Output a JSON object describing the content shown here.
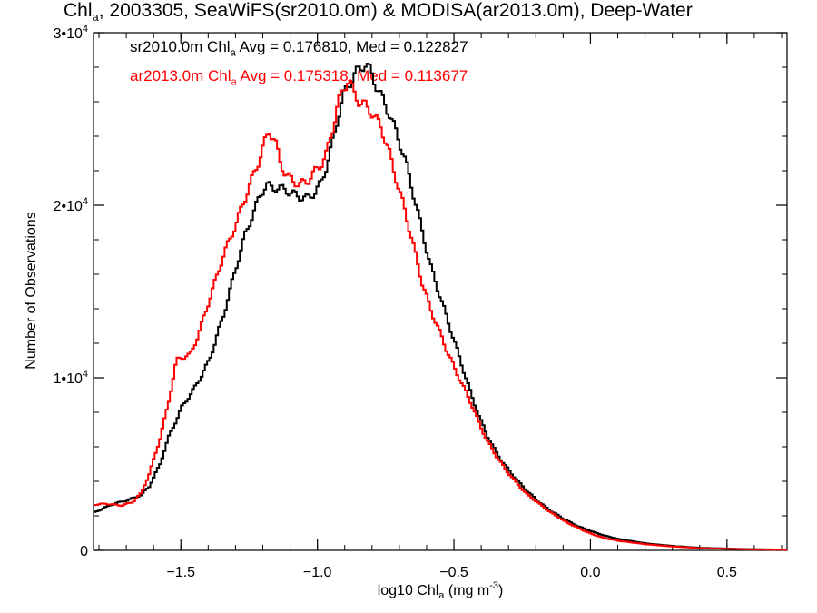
{
  "chart_data": {
    "type": "line",
    "title": {
      "prefix": "Chl",
      "sub": "a",
      "rest": ", 2003305, SeaWiFS(sr2010.0m) & MODISA(ar2013.0m), Deep-Water"
    },
    "xlabel": {
      "prefix": "log10 Chl",
      "sub": "a",
      "rest": " (mg m",
      "sup": "-3",
      "end": ")"
    },
    "ylabel": "Number of Observations",
    "xlim": [
      -1.82,
      0.72
    ],
    "ylim": [
      0,
      30000
    ],
    "x_ticks": [
      {
        "value": -1.5,
        "label": "-1.5"
      },
      {
        "value": -1.0,
        "label": "-1.0"
      },
      {
        "value": -0.5,
        "label": "-0.5"
      },
      {
        "value": 0.0,
        "label": "0.0"
      },
      {
        "value": 0.5,
        "label": "0.5"
      }
    ],
    "y_ticks": [
      {
        "value": 0,
        "mantissa": "0",
        "exp": ""
      },
      {
        "value": 10000,
        "mantissa": "1•10",
        "exp": "4"
      },
      {
        "value": 20000,
        "mantissa": "2•10",
        "exp": "4"
      },
      {
        "value": 30000,
        "mantissa": "3•10",
        "exp": "4"
      }
    ],
    "grid": false,
    "legend_placement": "top-left",
    "series": [
      {
        "name": "sr2010.0m",
        "legend": {
          "prefix": "sr2010.0m Chl",
          "sub": "a",
          "rest": " Avg = 0.176810, Med = 0.122827"
        },
        "color": "#000000",
        "points": [
          [
            -1.82,
            2200
          ],
          [
            -1.75,
            2700
          ],
          [
            -1.7,
            2900
          ],
          [
            -1.65,
            3200
          ],
          [
            -1.62,
            3700
          ],
          [
            -1.58,
            5000
          ],
          [
            -1.55,
            6500
          ],
          [
            -1.5,
            8300
          ],
          [
            -1.45,
            9500
          ],
          [
            -1.4,
            11000
          ],
          [
            -1.35,
            13500
          ],
          [
            -1.3,
            16500
          ],
          [
            -1.27,
            18200
          ],
          [
            -1.24,
            19500
          ],
          [
            -1.21,
            20700
          ],
          [
            -1.19,
            21200
          ],
          [
            -1.17,
            21000
          ],
          [
            -1.15,
            21000
          ],
          [
            -1.12,
            20900
          ],
          [
            -1.1,
            20700
          ],
          [
            -1.07,
            20500
          ],
          [
            -1.04,
            20400
          ],
          [
            -1.01,
            20800
          ],
          [
            -0.99,
            21300
          ],
          [
            -0.97,
            22300
          ],
          [
            -0.95,
            23500
          ],
          [
            -0.93,
            25000
          ],
          [
            -0.91,
            26300
          ],
          [
            -0.89,
            27000
          ],
          [
            -0.87,
            27500
          ],
          [
            -0.85,
            27900
          ],
          [
            -0.83,
            28200
          ],
          [
            -0.81,
            27800
          ],
          [
            -0.79,
            27000
          ],
          [
            -0.77,
            26300
          ],
          [
            -0.74,
            25300
          ],
          [
            -0.71,
            24000
          ],
          [
            -0.68,
            22500
          ],
          [
            -0.65,
            20500
          ],
          [
            -0.62,
            18500
          ],
          [
            -0.59,
            16500
          ],
          [
            -0.56,
            15000
          ],
          [
            -0.53,
            13500
          ],
          [
            -0.5,
            12000
          ],
          [
            -0.47,
            10500
          ],
          [
            -0.44,
            9000
          ],
          [
            -0.41,
            7700
          ],
          [
            -0.38,
            6600
          ],
          [
            -0.35,
            5700
          ],
          [
            -0.32,
            5000
          ],
          [
            -0.28,
            4200
          ],
          [
            -0.24,
            3500
          ],
          [
            -0.2,
            2900
          ],
          [
            -0.15,
            2300
          ],
          [
            -0.1,
            1800
          ],
          [
            -0.05,
            1400
          ],
          [
            0.0,
            1100
          ],
          [
            0.05,
            850
          ],
          [
            0.1,
            650
          ],
          [
            0.2,
            400
          ],
          [
            0.3,
            250
          ],
          [
            0.4,
            150
          ],
          [
            0.55,
            80
          ],
          [
            0.72,
            40
          ]
        ]
      },
      {
        "name": "ar2013.0m",
        "legend": {
          "prefix": "ar2013.0m Chl",
          "sub": "a",
          "rest": " Avg = 0.175318, Med = 0.113677"
        },
        "color": "#ff0000",
        "points": [
          [
            -1.82,
            2650
          ],
          [
            -1.78,
            2700
          ],
          [
            -1.72,
            2600
          ],
          [
            -1.68,
            2800
          ],
          [
            -1.65,
            3300
          ],
          [
            -1.62,
            4400
          ],
          [
            -1.58,
            6500
          ],
          [
            -1.55,
            8500
          ],
          [
            -1.52,
            11000
          ],
          [
            -1.5,
            11200
          ],
          [
            -1.47,
            11300
          ],
          [
            -1.44,
            12500
          ],
          [
            -1.4,
            14500
          ],
          [
            -1.35,
            17000
          ],
          [
            -1.3,
            19000
          ],
          [
            -1.26,
            20800
          ],
          [
            -1.22,
            22500
          ],
          [
            -1.2,
            23500
          ],
          [
            -1.18,
            24300
          ],
          [
            -1.16,
            23800
          ],
          [
            -1.14,
            22500
          ],
          [
            -1.12,
            21800
          ],
          [
            -1.1,
            21500
          ],
          [
            -1.07,
            21200
          ],
          [
            -1.04,
            21400
          ],
          [
            -1.01,
            22000
          ],
          [
            -0.99,
            22400
          ],
          [
            -0.97,
            23000
          ],
          [
            -0.95,
            24300
          ],
          [
            -0.93,
            25800
          ],
          [
            -0.91,
            26700
          ],
          [
            -0.89,
            27300
          ],
          [
            -0.87,
            26500
          ],
          [
            -0.85,
            26000
          ],
          [
            -0.83,
            25800
          ],
          [
            -0.81,
            25500
          ],
          [
            -0.79,
            25000
          ],
          [
            -0.77,
            24500
          ],
          [
            -0.74,
            23000
          ],
          [
            -0.71,
            21200
          ],
          [
            -0.68,
            19500
          ],
          [
            -0.65,
            17500
          ],
          [
            -0.62,
            15500
          ],
          [
            -0.59,
            14000
          ],
          [
            -0.56,
            12800
          ],
          [
            -0.53,
            11600
          ],
          [
            -0.5,
            10500
          ],
          [
            -0.47,
            9500
          ],
          [
            -0.44,
            8500
          ],
          [
            -0.41,
            7300
          ],
          [
            -0.38,
            6300
          ],
          [
            -0.35,
            5500
          ],
          [
            -0.32,
            4800
          ],
          [
            -0.28,
            4000
          ],
          [
            -0.24,
            3300
          ],
          [
            -0.2,
            2800
          ],
          [
            -0.15,
            2200
          ],
          [
            -0.1,
            1700
          ],
          [
            -0.05,
            1300
          ],
          [
            0.0,
            950
          ],
          [
            0.05,
            700
          ],
          [
            0.1,
            550
          ],
          [
            0.2,
            350
          ],
          [
            0.3,
            220
          ],
          [
            0.4,
            130
          ],
          [
            0.55,
            70
          ],
          [
            0.72,
            30
          ]
        ]
      }
    ]
  }
}
